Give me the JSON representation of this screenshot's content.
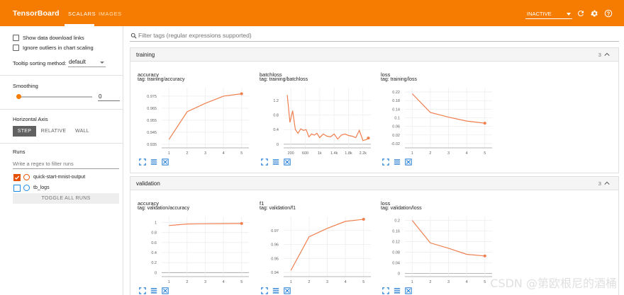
{
  "colors": {
    "accent": "#f57c00",
    "series": "#ef7f4e",
    "run_blue": "#1e88e5",
    "run_orange": "#e65100"
  },
  "header": {
    "brand": "TensorBoard",
    "tabs": [
      {
        "label": "SCALARS",
        "active": true
      },
      {
        "label": "IMAGES",
        "active": false
      }
    ],
    "run_status": "INACTIVE",
    "icons": [
      "refresh-icon",
      "settings-icon",
      "help-icon"
    ]
  },
  "sidebar": {
    "show_download": "Show data download links",
    "ignore_outliers": "Ignore outliers in chart scaling",
    "tooltip_label": "Tooltip sorting method:",
    "tooltip_value": "default",
    "smoothing_label": "Smoothing",
    "smoothing_value": "0",
    "smoothing_fraction": 0,
    "axis_label": "Horizontal Axis",
    "axis_options": [
      "STEP",
      "RELATIVE",
      "WALL"
    ],
    "axis_selected": "STEP",
    "runs_label": "Runs",
    "runs_placeholder": "Write a regex to filter runs",
    "runs": [
      {
        "name": "quick-start-mnist-output",
        "checked": true,
        "color": "#e65100"
      },
      {
        "name": "tb_logs",
        "checked": false,
        "color": "#1e88e5"
      }
    ],
    "toggle_runs": "TOGGLE ALL RUNS"
  },
  "main": {
    "filter_placeholder": "Filter tags (regular expressions supported)",
    "groups": [
      {
        "title": "training",
        "count": "3"
      },
      {
        "title": "validation",
        "count": "3"
      }
    ]
  },
  "watermark": "CSDN @第欧根尼的酒桶",
  "chart_data": [
    {
      "type": "line",
      "title": "accuracy",
      "tag": "tag: training/accuracy",
      "x": [
        1,
        2,
        3,
        4,
        5
      ],
      "y": [
        0.939,
        0.962,
        0.969,
        0.975,
        0.977
      ],
      "xticks": [
        "1",
        "2",
        "3",
        "4",
        "5"
      ],
      "xtick_values": [
        1,
        2,
        3,
        4,
        5
      ],
      "yticks": [
        "0.975",
        "0.965",
        "0.955",
        "0.945",
        "0.935"
      ],
      "ytick_values": [
        0.975,
        0.965,
        0.955,
        0.945,
        0.935
      ],
      "xlim": [
        0.6,
        5.4
      ],
      "ylim": [
        0.932,
        0.982
      ]
    },
    {
      "type": "line",
      "title": "batchloss",
      "tag": "tag: training/batchloss",
      "x": [
        100,
        175,
        250,
        325,
        400,
        475,
        550,
        625,
        700,
        775,
        850,
        925,
        1000,
        1100,
        1200,
        1300,
        1400,
        1500,
        1600,
        1700,
        1800,
        1900,
        2000,
        2100,
        2200,
        2300,
        2350
      ],
      "y": [
        1.35,
        0.6,
        0.92,
        0.4,
        0.3,
        0.42,
        0.38,
        0.4,
        0.2,
        0.28,
        0.25,
        0.3,
        0.18,
        0.28,
        0.22,
        0.2,
        0.28,
        0.14,
        0.25,
        0.28,
        0.24,
        0.22,
        0.18,
        0.38,
        0.1,
        0.13,
        0.17
      ],
      "xticks": [
        "200",
        "600",
        "1k",
        "1.4k",
        "1.8k",
        "2.2k"
      ],
      "xtick_values": [
        200,
        600,
        1000,
        1400,
        1800,
        2200
      ],
      "yticks": [
        "1.2",
        "0.8",
        "0.4",
        "0"
      ],
      "ytick_values": [
        1.2,
        0.8,
        0.4,
        0
      ],
      "xlim": [
        0,
        2420
      ],
      "ylim": [
        -0.1,
        1.55
      ]
    },
    {
      "type": "line",
      "title": "loss",
      "tag": "tag: training/loss",
      "x": [
        1,
        2,
        3,
        4,
        5
      ],
      "y": [
        0.212,
        0.125,
        0.103,
        0.085,
        0.075
      ],
      "xticks": [
        "1",
        "2",
        "3",
        "4",
        "5"
      ],
      "xtick_values": [
        1,
        2,
        3,
        4,
        5
      ],
      "yticks": [
        "0.22",
        "0.18",
        "0.14",
        "0.1",
        "0.06",
        "0.02",
        "-0.02"
      ],
      "ytick_values": [
        0.22,
        0.18,
        0.14,
        0.1,
        0.06,
        0.02,
        -0.02
      ],
      "xlim": [
        0.6,
        5.4
      ],
      "ylim": [
        -0.04,
        0.24
      ]
    },
    {
      "type": "line",
      "title": "accuracy",
      "tag": "tag: validation/accuracy",
      "x": [
        1,
        2,
        3,
        4,
        5
      ],
      "y": [
        0.94,
        0.97,
        0.975,
        0.978,
        0.98
      ],
      "xticks": [
        "1",
        "2",
        "3",
        "4",
        "5"
      ],
      "xtick_values": [
        1,
        2,
        3,
        4,
        5
      ],
      "yticks": [
        "1",
        "0.8",
        "0.6",
        "0.4",
        "0.2",
        "0"
      ],
      "ytick_values": [
        1,
        0.8,
        0.6,
        0.4,
        0.2,
        0
      ],
      "xlim": [
        0.6,
        5.4
      ],
      "ylim": [
        -0.08,
        1.12
      ]
    },
    {
      "type": "line",
      "title": "f1",
      "tag": "tag: validation/f1",
      "x": [
        1,
        2,
        3,
        4,
        5
      ],
      "y": [
        0.9415,
        0.9655,
        0.9715,
        0.9765,
        0.978
      ],
      "xticks": [
        "1",
        "2",
        "3",
        "4",
        "5"
      ],
      "xtick_values": [
        1,
        2,
        3,
        4,
        5
      ],
      "yticks": [
        "0.97",
        "0.96",
        "0.95",
        "0.94"
      ],
      "ytick_values": [
        0.97,
        0.96,
        0.95,
        0.94
      ],
      "xlim": [
        0.6,
        5.4
      ],
      "ylim": [
        0.937,
        0.98
      ]
    },
    {
      "type": "line",
      "title": "loss",
      "tag": "tag: validation/loss",
      "x": [
        1,
        2,
        3,
        4,
        5
      ],
      "y": [
        0.2,
        0.115,
        0.095,
        0.072,
        0.066
      ],
      "xticks": [
        "1",
        "2",
        "3",
        "4",
        "5"
      ],
      "xtick_values": [
        1,
        2,
        3,
        4,
        5
      ],
      "yticks": [
        "0.2",
        "0.16",
        "0.12",
        "0.08",
        "0.04",
        "0"
      ],
      "ytick_values": [
        0.2,
        0.16,
        0.12,
        0.08,
        0.04,
        0
      ],
      "xlim": [
        0.6,
        5.4
      ],
      "ylim": [
        -0.012,
        0.215
      ]
    }
  ]
}
